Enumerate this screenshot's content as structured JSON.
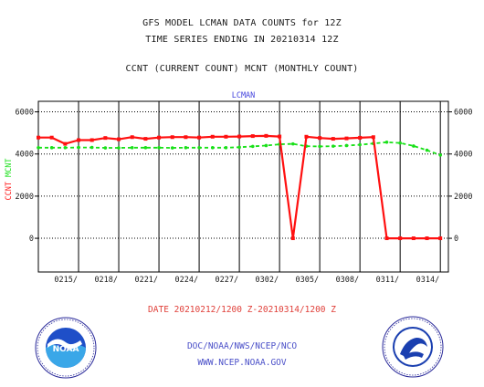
{
  "header": {
    "line1": "GFS MODEL LCMAN DATA COUNTS for 12Z",
    "line2": "TIME SERIES ENDING IN 20210314 12Z",
    "line3": "CCNT (CURRENT COUNT) MCNT (MONTHLY COUNT)"
  },
  "footer": {
    "date_range": "DATE 20210212/1200 Z-20210314/1200 Z",
    "org": "DOC/NOAA/NWS/NCEP/NCO",
    "url": "WWW.NCEP.NOAA.GOV"
  },
  "logos": {
    "left": "NOAA",
    "right_alt": "National Weather Service"
  },
  "chart_data": {
    "type": "line",
    "title": "LCMAN",
    "ylabel_left": [
      "CCNT",
      "MCNT"
    ],
    "yticks": [
      "0",
      "2000",
      "4000",
      "6000"
    ],
    "ylim": [
      -1600,
      6500
    ],
    "xlim": [
      0,
      30.6
    ],
    "xticks": [
      {
        "x": 3,
        "label": "0215/"
      },
      {
        "x": 6,
        "label": "0218/"
      },
      {
        "x": 9,
        "label": "0221/"
      },
      {
        "x": 12,
        "label": "0224/"
      },
      {
        "x": 15,
        "label": "0227/"
      },
      {
        "x": 18,
        "label": "0302/"
      },
      {
        "x": 21,
        "label": "0305/"
      },
      {
        "x": 24,
        "label": "0308/"
      },
      {
        "x": 27,
        "label": "0311/"
      },
      {
        "x": 30,
        "label": "0314/"
      }
    ],
    "grid": true,
    "colors": {
      "ccnt": "#ff1010",
      "mcnt": "#19e019",
      "frame": "#000000",
      "title": "#4444dd",
      "axis_label_ccnt": "#ff2020",
      "axis_label_mcnt": "#19e019"
    },
    "series": [
      {
        "name": "CCNT",
        "values": [
          4780,
          4780,
          4480,
          4660,
          4660,
          4760,
          4700,
          4800,
          4720,
          4780,
          4800,
          4800,
          4780,
          4820,
          4820,
          4830,
          4850,
          4860,
          4830,
          0,
          4820,
          4760,
          4720,
          4740,
          4770,
          4800,
          0,
          0,
          0,
          0,
          0
        ]
      },
      {
        "name": "MCNT",
        "values": [
          4300,
          4300,
          4300,
          4310,
          4310,
          4290,
          4290,
          4300,
          4300,
          4300,
          4290,
          4300,
          4300,
          4300,
          4300,
          4320,
          4360,
          4400,
          4460,
          4480,
          4370,
          4360,
          4370,
          4400,
          4440,
          4500,
          4560,
          4520,
          4380,
          4180,
          3950
        ]
      }
    ]
  }
}
